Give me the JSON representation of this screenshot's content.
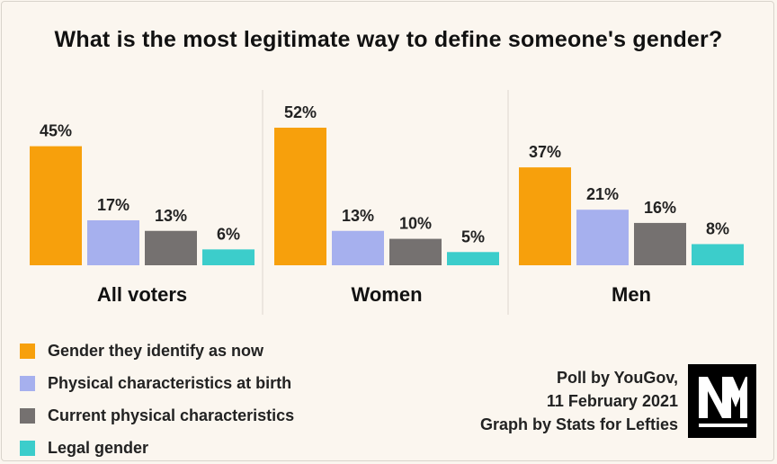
{
  "chart_data": {
    "type": "bar",
    "title": "What is the most legitimate way to define someone's gender?",
    "categories": [
      "All voters",
      "Women",
      "Men"
    ],
    "series": [
      {
        "name": "Gender they identify as now",
        "color": "#f7a00c",
        "values": [
          45,
          52,
          37
        ]
      },
      {
        "name": "Physical characteristics at birth",
        "color": "#a6b0ee",
        "values": [
          17,
          13,
          21
        ]
      },
      {
        "name": "Current physical characteristics",
        "color": "#757170",
        "values": [
          13,
          10,
          16
        ]
      },
      {
        "name": "Legal gender",
        "color": "#3ccdcb",
        "values": [
          6,
          5,
          8
        ]
      }
    ],
    "value_suffix": "%",
    "ylim": [
      0,
      52
    ],
    "grid": false,
    "legend_position": "bottom-left"
  },
  "source": {
    "line1": "Poll by YouGov,",
    "line2": "11 February 2021",
    "line3": "Graph by Stats for Lefties"
  },
  "colors": {
    "background": "#fbf6ef",
    "separator": "#dcd7cf"
  },
  "logo_icon": "novara-media-logo-icon"
}
